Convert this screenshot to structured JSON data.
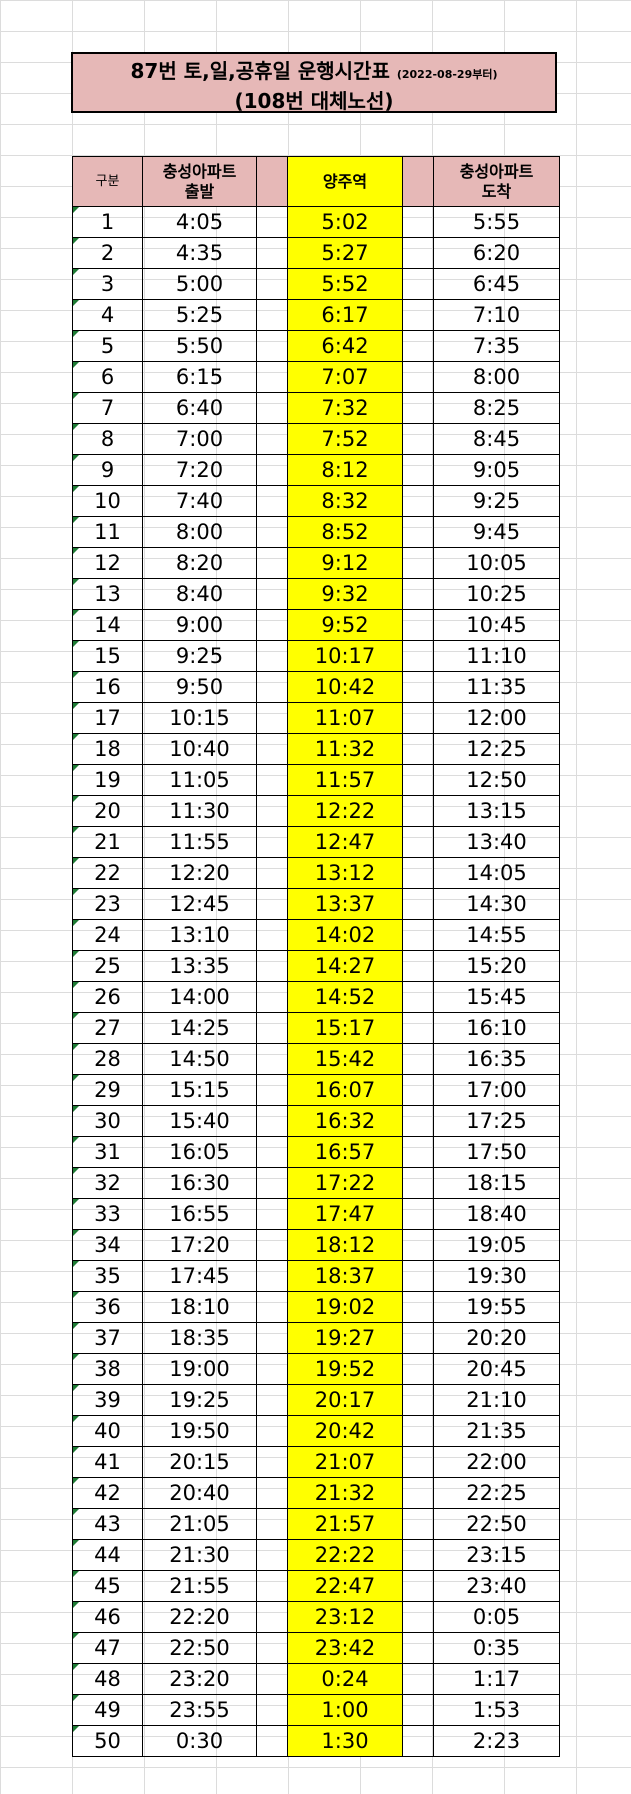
{
  "title": {
    "line1_main": "87번 토,일,공휴일 운행시간표",
    "line1_note": "(2022-08-29부터)",
    "line2": "(108번 대체노선)"
  },
  "headers": {
    "gubun": "구분",
    "depart": "충성아파트\n출발",
    "yangju": "양주역",
    "arrive": "충성아파트\n도착"
  },
  "colors": {
    "header_bg": "#e6b8b7",
    "highlight": "#ffff00"
  },
  "rows": [
    {
      "no": "1",
      "dep": "4:05",
      "yj": "5:02",
      "arr": "5:55"
    },
    {
      "no": "2",
      "dep": "4:35",
      "yj": "5:27",
      "arr": "6:20"
    },
    {
      "no": "3",
      "dep": "5:00",
      "yj": "5:52",
      "arr": "6:45"
    },
    {
      "no": "4",
      "dep": "5:25",
      "yj": "6:17",
      "arr": "7:10"
    },
    {
      "no": "5",
      "dep": "5:50",
      "yj": "6:42",
      "arr": "7:35"
    },
    {
      "no": "6",
      "dep": "6:15",
      "yj": "7:07",
      "arr": "8:00"
    },
    {
      "no": "7",
      "dep": "6:40",
      "yj": "7:32",
      "arr": "8:25"
    },
    {
      "no": "8",
      "dep": "7:00",
      "yj": "7:52",
      "arr": "8:45"
    },
    {
      "no": "9",
      "dep": "7:20",
      "yj": "8:12",
      "arr": "9:05"
    },
    {
      "no": "10",
      "dep": "7:40",
      "yj": "8:32",
      "arr": "9:25"
    },
    {
      "no": "11",
      "dep": "8:00",
      "yj": "8:52",
      "arr": "9:45"
    },
    {
      "no": "12",
      "dep": "8:20",
      "yj": "9:12",
      "arr": "10:05"
    },
    {
      "no": "13",
      "dep": "8:40",
      "yj": "9:32",
      "arr": "10:25"
    },
    {
      "no": "14",
      "dep": "9:00",
      "yj": "9:52",
      "arr": "10:45"
    },
    {
      "no": "15",
      "dep": "9:25",
      "yj": "10:17",
      "arr": "11:10"
    },
    {
      "no": "16",
      "dep": "9:50",
      "yj": "10:42",
      "arr": "11:35"
    },
    {
      "no": "17",
      "dep": "10:15",
      "yj": "11:07",
      "arr": "12:00"
    },
    {
      "no": "18",
      "dep": "10:40",
      "yj": "11:32",
      "arr": "12:25"
    },
    {
      "no": "19",
      "dep": "11:05",
      "yj": "11:57",
      "arr": "12:50"
    },
    {
      "no": "20",
      "dep": "11:30",
      "yj": "12:22",
      "arr": "13:15"
    },
    {
      "no": "21",
      "dep": "11:55",
      "yj": "12:47",
      "arr": "13:40"
    },
    {
      "no": "22",
      "dep": "12:20",
      "yj": "13:12",
      "arr": "14:05"
    },
    {
      "no": "23",
      "dep": "12:45",
      "yj": "13:37",
      "arr": "14:30"
    },
    {
      "no": "24",
      "dep": "13:10",
      "yj": "14:02",
      "arr": "14:55"
    },
    {
      "no": "25",
      "dep": "13:35",
      "yj": "14:27",
      "arr": "15:20"
    },
    {
      "no": "26",
      "dep": "14:00",
      "yj": "14:52",
      "arr": "15:45"
    },
    {
      "no": "27",
      "dep": "14:25",
      "yj": "15:17",
      "arr": "16:10"
    },
    {
      "no": "28",
      "dep": "14:50",
      "yj": "15:42",
      "arr": "16:35"
    },
    {
      "no": "29",
      "dep": "15:15",
      "yj": "16:07",
      "arr": "17:00"
    },
    {
      "no": "30",
      "dep": "15:40",
      "yj": "16:32",
      "arr": "17:25"
    },
    {
      "no": "31",
      "dep": "16:05",
      "yj": "16:57",
      "arr": "17:50"
    },
    {
      "no": "32",
      "dep": "16:30",
      "yj": "17:22",
      "arr": "18:15"
    },
    {
      "no": "33",
      "dep": "16:55",
      "yj": "17:47",
      "arr": "18:40"
    },
    {
      "no": "34",
      "dep": "17:20",
      "yj": "18:12",
      "arr": "19:05"
    },
    {
      "no": "35",
      "dep": "17:45",
      "yj": "18:37",
      "arr": "19:30"
    },
    {
      "no": "36",
      "dep": "18:10",
      "yj": "19:02",
      "arr": "19:55"
    },
    {
      "no": "37",
      "dep": "18:35",
      "yj": "19:27",
      "arr": "20:20"
    },
    {
      "no": "38",
      "dep": "19:00",
      "yj": "19:52",
      "arr": "20:45"
    },
    {
      "no": "39",
      "dep": "19:25",
      "yj": "20:17",
      "arr": "21:10"
    },
    {
      "no": "40",
      "dep": "19:50",
      "yj": "20:42",
      "arr": "21:35"
    },
    {
      "no": "41",
      "dep": "20:15",
      "yj": "21:07",
      "arr": "22:00"
    },
    {
      "no": "42",
      "dep": "20:40",
      "yj": "21:32",
      "arr": "22:25"
    },
    {
      "no": "43",
      "dep": "21:05",
      "yj": "21:57",
      "arr": "22:50"
    },
    {
      "no": "44",
      "dep": "21:30",
      "yj": "22:22",
      "arr": "23:15"
    },
    {
      "no": "45",
      "dep": "21:55",
      "yj": "22:47",
      "arr": "23:40"
    },
    {
      "no": "46",
      "dep": "22:20",
      "yj": "23:12",
      "arr": "0:05"
    },
    {
      "no": "47",
      "dep": "22:50",
      "yj": "23:42",
      "arr": "0:35"
    },
    {
      "no": "48",
      "dep": "23:20",
      "yj": "0:24",
      "arr": "1:17"
    },
    {
      "no": "49",
      "dep": "23:55",
      "yj": "1:00",
      "arr": "1:53"
    },
    {
      "no": "50",
      "dep": "0:30",
      "yj": "1:30",
      "arr": "2:23"
    }
  ]
}
